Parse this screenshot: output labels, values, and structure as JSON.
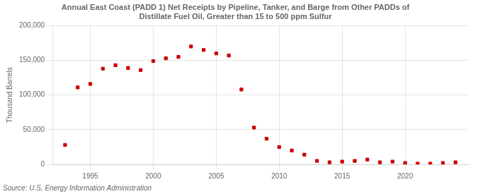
{
  "chart_data": {
    "type": "scatter",
    "title": "Annual East Coast (PADD 1) Net Receipts by Pipeline, Tanker, and Barge from Other PADDs of\nDistillate Fuel Oil, Greater than 15 to 500 ppm Sulfur",
    "ylabel": "Thousand Barrels",
    "annotations": [
      "Source: U.S. Energy Information Administration"
    ],
    "x": [
      1993,
      1994,
      1995,
      1996,
      1997,
      1998,
      1999,
      2000,
      2001,
      2002,
      2003,
      2004,
      2005,
      2006,
      2007,
      2008,
      2009,
      2010,
      2011,
      2012,
      2013,
      2014,
      2015,
      2016,
      2017,
      2018,
      2019,
      2020,
      2021,
      2022,
      2023,
      2024
    ],
    "values": [
      28000,
      111000,
      116000,
      138000,
      143000,
      139000,
      136000,
      149000,
      153000,
      155000,
      170000,
      165000,
      160000,
      157000,
      108000,
      53000,
      37000,
      25000,
      20000,
      14000,
      5000,
      3000,
      4000,
      5000,
      7000,
      3000,
      4000,
      2000,
      1000,
      1000,
      2000,
      3000
    ],
    "color": "#cc0000",
    "marker": "square",
    "xlim": [
      1992,
      2025
    ],
    "xticks": [
      1995,
      2000,
      2005,
      2010,
      2015,
      2020
    ],
    "ylim": [
      0,
      200000
    ],
    "yticks": [
      0,
      {
        "value": 50000,
        "label": "50,000"
      },
      {
        "value": 100000,
        "label": "100,000"
      },
      {
        "value": 150000,
        "label": "150,000"
      },
      {
        "value": 200000,
        "label": "200,000"
      }
    ],
    "grid": true
  }
}
